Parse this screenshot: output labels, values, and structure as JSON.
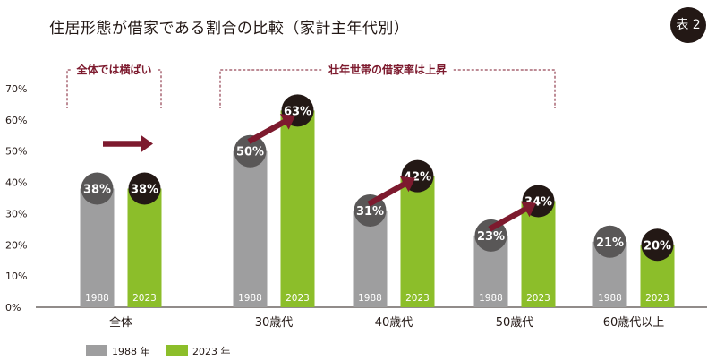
{
  "title": "住居形態が借家である割合の比較（家計主年代別）",
  "badge": "表 2",
  "colors": {
    "bar_1988": "#9e9e9f",
    "bar_2023": "#8cbe2a",
    "bubble_1988": "#595757",
    "bubble_2023": "#231815",
    "arrow": "#7d1a2e",
    "annotation": "#7d1a2e",
    "axis": "#231815"
  },
  "annotations": [
    {
      "text": "全体では横ばい",
      "from_category": "全体",
      "to_category": "全体"
    },
    {
      "text": "壮年世帯の借家率は上昇",
      "from_category": "30歳代",
      "to_category": "50歳代"
    }
  ],
  "arrows": [
    {
      "category": "全体",
      "direction": "flat",
      "icon": "right-arrow"
    },
    {
      "category": "30歳代",
      "direction": "up",
      "icon": "up-right-arrow"
    },
    {
      "category": "40歳代",
      "direction": "up",
      "icon": "up-right-arrow"
    },
    {
      "category": "50歳代",
      "direction": "up",
      "icon": "up-right-arrow"
    }
  ],
  "chart_data": {
    "type": "bar",
    "title": "住居形態が借家である割合の比較（家計主年代別）",
    "categories": [
      "全体",
      "30歳代",
      "40歳代",
      "50歳代",
      "60歳代以上"
    ],
    "series": [
      {
        "name": "1988年",
        "bar_label": "1988",
        "legend": "1988 年",
        "values": [
          38,
          50,
          31,
          23,
          21
        ]
      },
      {
        "name": "2023年",
        "bar_label": "2023",
        "legend": "2023 年",
        "values": [
          38,
          63,
          42,
          34,
          20
        ]
      }
    ],
    "value_suffix": "%",
    "ylim": [
      0,
      70
    ],
    "yticks": [
      0,
      10,
      20,
      30,
      40,
      50,
      60,
      70
    ],
    "ytick_labels": [
      "0%",
      "10%",
      "20%",
      "30%",
      "40%",
      "50%",
      "60%",
      "70%"
    ],
    "grid": false,
    "legend_position": "bottom-left"
  }
}
